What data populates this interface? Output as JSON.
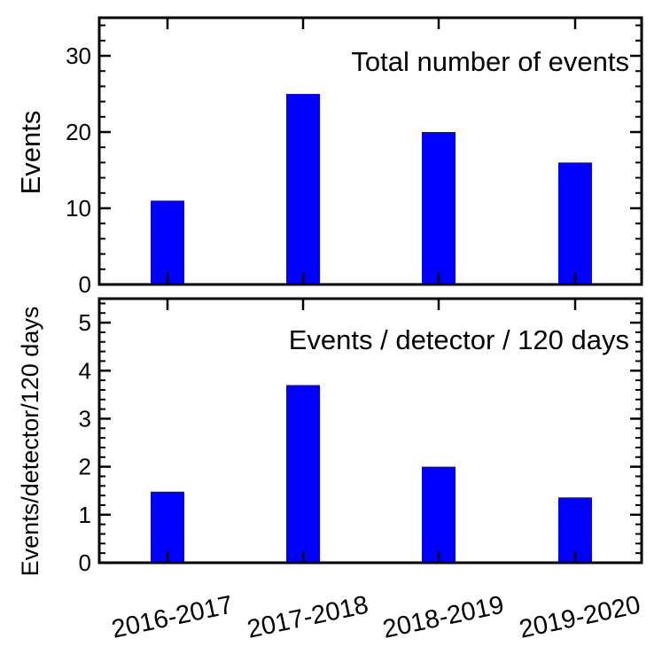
{
  "chart_data": [
    {
      "type": "bar",
      "title": "Total number of events",
      "ylabel": "Events",
      "xlabel": "",
      "categories": [
        "2016-2017",
        "2017-2018",
        "2018-2019",
        "2019-2020"
      ],
      "values": [
        11,
        25,
        20,
        16
      ],
      "ylim": [
        0,
        35
      ],
      "yticks": [
        0,
        10,
        20,
        30
      ],
      "color": "#0000ff"
    },
    {
      "type": "bar",
      "title": "Events / detector / 120 days",
      "ylabel": "Events/detector/120 days",
      "xlabel": "",
      "categories": [
        "2016-2017",
        "2017-2018",
        "2018-2019",
        "2019-2020"
      ],
      "values": [
        1.48,
        3.7,
        2.0,
        1.36
      ],
      "ylim": [
        0,
        5.5
      ],
      "yticks": [
        0,
        1,
        2,
        3,
        4,
        5
      ],
      "color": "#0000ff"
    }
  ]
}
